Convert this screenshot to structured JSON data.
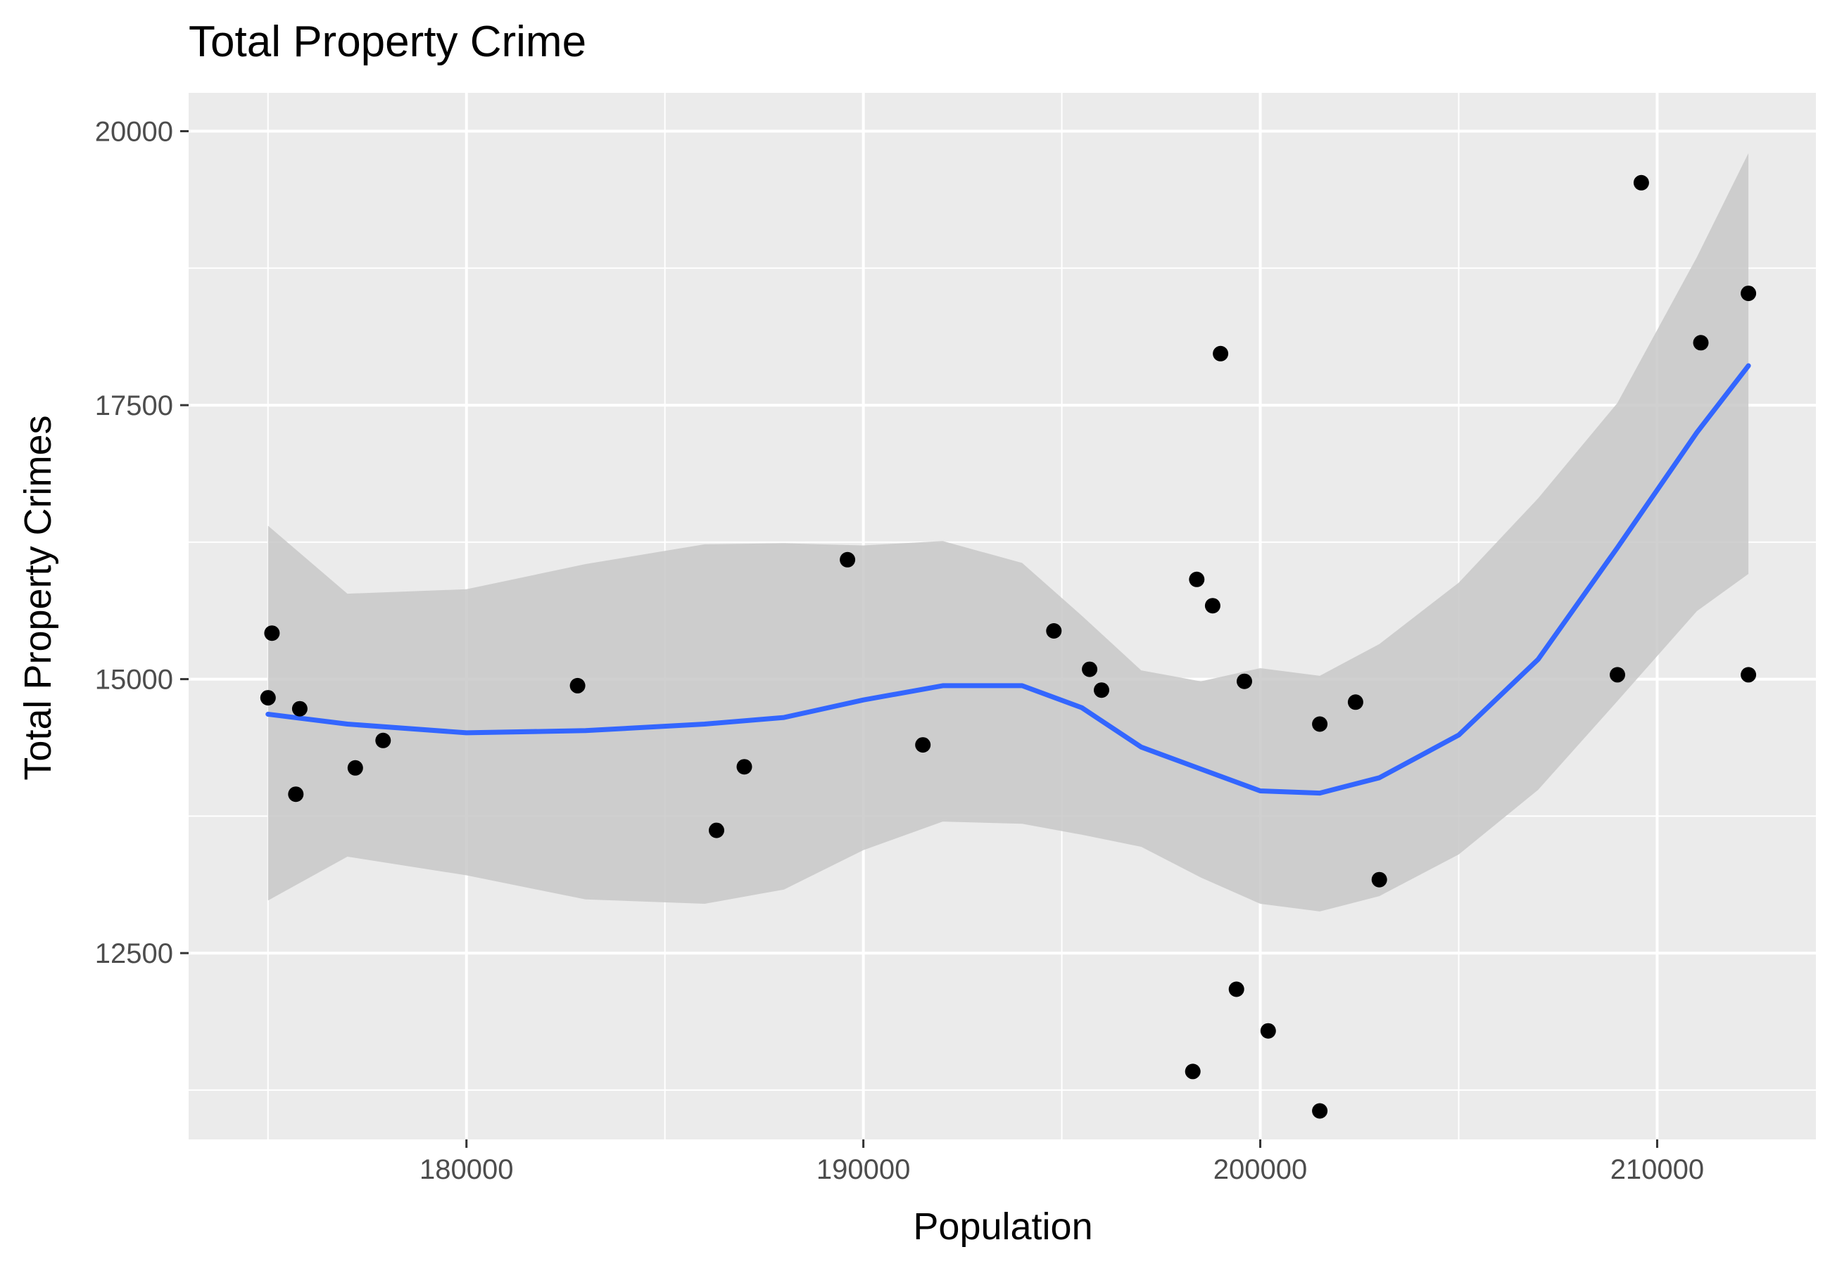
{
  "chart_data": {
    "type": "scatter",
    "title": "Total Property Crime",
    "xlabel": "Population",
    "ylabel": "Total Property Crimes",
    "xlim": [
      173000,
      214000
    ],
    "ylim": [
      10800,
      20350
    ],
    "x_ticks": [
      180000,
      190000,
      200000,
      210000
    ],
    "x_tick_labels": [
      "180000",
      "190000",
      "200000",
      "210000"
    ],
    "y_ticks": [
      12500,
      15000,
      17500,
      20000
    ],
    "y_tick_labels": [
      "12500",
      "15000",
      "17500",
      "20000"
    ],
    "grid": true,
    "legend": "none",
    "colors": {
      "panel": "#ebebeb",
      "grid": "#ffffff",
      "points": "#000000",
      "smooth_line": "#3366ff",
      "confidence_band": "#c8c8c8"
    },
    "points": [
      {
        "x": 175000,
        "y": 14830
      },
      {
        "x": 175100,
        "y": 15420
      },
      {
        "x": 175700,
        "y": 13950
      },
      {
        "x": 175800,
        "y": 14730
      },
      {
        "x": 177200,
        "y": 14190
      },
      {
        "x": 177900,
        "y": 14440
      },
      {
        "x": 182800,
        "y": 14940
      },
      {
        "x": 186300,
        "y": 13620
      },
      {
        "x": 187000,
        "y": 14200
      },
      {
        "x": 189600,
        "y": 16090
      },
      {
        "x": 191500,
        "y": 14400
      },
      {
        "x": 194800,
        "y": 15440
      },
      {
        "x": 195700,
        "y": 15090
      },
      {
        "x": 196000,
        "y": 14900
      },
      {
        "x": 198300,
        "y": 11420
      },
      {
        "x": 198400,
        "y": 15910
      },
      {
        "x": 198800,
        "y": 15670
      },
      {
        "x": 199000,
        "y": 17970
      },
      {
        "x": 199400,
        "y": 12170
      },
      {
        "x": 199600,
        "y": 14980
      },
      {
        "x": 200200,
        "y": 11790
      },
      {
        "x": 201500,
        "y": 11060
      },
      {
        "x": 201500,
        "y": 14590
      },
      {
        "x": 202400,
        "y": 14790
      },
      {
        "x": 203000,
        "y": 13170
      },
      {
        "x": 209000,
        "y": 15040
      },
      {
        "x": 209600,
        "y": 19530
      },
      {
        "x": 211100,
        "y": 18070
      },
      {
        "x": 212300,
        "y": 18520
      },
      {
        "x": 212300,
        "y": 15040
      }
    ],
    "smooth_line": {
      "x": [
        175000,
        177000,
        180000,
        183000,
        186000,
        188000,
        190000,
        192000,
        194000,
        195500,
        197000,
        198500,
        200000,
        201500,
        203000,
        205000,
        207000,
        209000,
        211000,
        212300
      ],
      "y": [
        14680,
        14590,
        14510,
        14530,
        14590,
        14650,
        14810,
        14940,
        14940,
        14740,
        14380,
        14180,
        13980,
        13960,
        14100,
        14490,
        15180,
        16200,
        17250,
        17860
      ]
    },
    "confidence_band": {
      "x": [
        175000,
        177000,
        180000,
        183000,
        186000,
        188000,
        190000,
        192000,
        194000,
        195500,
        197000,
        198500,
        200000,
        201500,
        203000,
        205000,
        207000,
        209000,
        211000,
        212300
      ],
      "upper": [
        16400,
        15780,
        15820,
        16050,
        16230,
        16240,
        16220,
        16260,
        16060,
        15580,
        15080,
        14980,
        15100,
        15030,
        15320,
        15880,
        16650,
        17520,
        18850,
        19800
      ],
      "lower": [
        12980,
        13380,
        13210,
        12990,
        12950,
        13080,
        13440,
        13700,
        13680,
        13580,
        13470,
        13190,
        12950,
        12880,
        13020,
        13400,
        13990,
        14800,
        15620,
        15960
      ]
    }
  }
}
